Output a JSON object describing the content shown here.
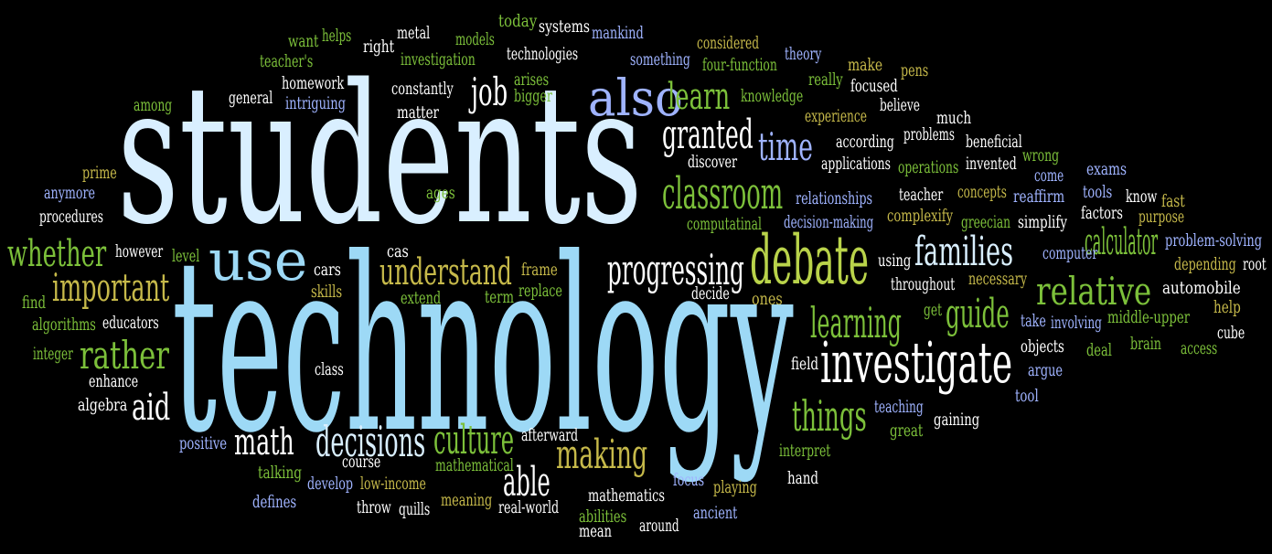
{
  "background": "#000000",
  "palette": {
    "white": "#ffffff",
    "pale_blue": "#d9efff",
    "sky_blue": "#9dd9f6",
    "periwinkle": "#9fb3ff",
    "green": "#7cc03a",
    "olive": "#c6b94a",
    "yellow_green": "#b9d34a"
  },
  "words": [
    {
      "text": "students",
      "color": "pale_blue"
    },
    {
      "text": "technology",
      "color": "sky_blue"
    },
    {
      "text": "use",
      "color": "sky_blue"
    },
    {
      "text": "also",
      "color": "periwinkle"
    },
    {
      "text": "debate",
      "color": "yellow_green"
    },
    {
      "text": "investigate",
      "color": "white"
    },
    {
      "text": "families",
      "color": "pale_blue"
    },
    {
      "text": "understand",
      "color": "olive"
    },
    {
      "text": "progressing",
      "color": "white"
    },
    {
      "text": "classroom",
      "color": "green"
    },
    {
      "text": "granted",
      "color": "white"
    },
    {
      "text": "learn",
      "color": "green"
    },
    {
      "text": "time",
      "color": "periwinkle"
    },
    {
      "text": "job",
      "color": "white"
    },
    {
      "text": "whether",
      "color": "green"
    },
    {
      "text": "important",
      "color": "olive"
    },
    {
      "text": "relative",
      "color": "green"
    },
    {
      "text": "calculator",
      "color": "green"
    },
    {
      "text": "rather",
      "color": "green"
    },
    {
      "text": "learning",
      "color": "green"
    },
    {
      "text": "guide",
      "color": "green"
    },
    {
      "text": "things",
      "color": "green"
    },
    {
      "text": "culture",
      "color": "green"
    },
    {
      "text": "making",
      "color": "olive"
    },
    {
      "text": "decisions",
      "color": "pale_blue"
    },
    {
      "text": "math",
      "color": "white"
    },
    {
      "text": "able",
      "color": "white"
    },
    {
      "text": "aid",
      "color": "white"
    },
    {
      "text": "want",
      "color": "green"
    },
    {
      "text": "helps",
      "color": "green"
    },
    {
      "text": "right",
      "color": "white"
    },
    {
      "text": "metal",
      "color": "white"
    },
    {
      "text": "models",
      "color": "green"
    },
    {
      "text": "today",
      "color": "green"
    },
    {
      "text": "systems",
      "color": "white"
    },
    {
      "text": "mankind",
      "color": "periwinkle"
    },
    {
      "text": "considered",
      "color": "olive"
    },
    {
      "text": "theory",
      "color": "periwinkle"
    },
    {
      "text": "teacher's",
      "color": "green"
    },
    {
      "text": "investigation",
      "color": "green"
    },
    {
      "text": "technologies",
      "color": "white"
    },
    {
      "text": "something",
      "color": "periwinkle"
    },
    {
      "text": "four-function",
      "color": "green"
    },
    {
      "text": "make",
      "color": "olive"
    },
    {
      "text": "pens",
      "color": "olive"
    },
    {
      "text": "homework",
      "color": "white"
    },
    {
      "text": "arises",
      "color": "green"
    },
    {
      "text": "really",
      "color": "green"
    },
    {
      "text": "focused",
      "color": "white"
    },
    {
      "text": "among",
      "color": "green"
    },
    {
      "text": "general",
      "color": "white"
    },
    {
      "text": "intriguing",
      "color": "periwinkle"
    },
    {
      "text": "constantly",
      "color": "white"
    },
    {
      "text": "bigger",
      "color": "green"
    },
    {
      "text": "knowledge",
      "color": "green"
    },
    {
      "text": "believe",
      "color": "white"
    },
    {
      "text": "matter",
      "color": "white"
    },
    {
      "text": "experience",
      "color": "olive"
    },
    {
      "text": "much",
      "color": "white"
    },
    {
      "text": "according",
      "color": "white"
    },
    {
      "text": "problems",
      "color": "white"
    },
    {
      "text": "beneficial",
      "color": "white"
    },
    {
      "text": "wrong",
      "color": "green"
    },
    {
      "text": "discover",
      "color": "white"
    },
    {
      "text": "applications",
      "color": "white"
    },
    {
      "text": "operations",
      "color": "green"
    },
    {
      "text": "invented",
      "color": "white"
    },
    {
      "text": "come",
      "color": "periwinkle"
    },
    {
      "text": "exams",
      "color": "periwinkle"
    },
    {
      "text": "prime",
      "color": "olive"
    },
    {
      "text": "anymore",
      "color": "periwinkle"
    },
    {
      "text": "ages",
      "color": "green"
    },
    {
      "text": "relationships",
      "color": "periwinkle"
    },
    {
      "text": "teacher",
      "color": "white"
    },
    {
      "text": "concepts",
      "color": "olive"
    },
    {
      "text": "reaffirm",
      "color": "periwinkle"
    },
    {
      "text": "tools",
      "color": "periwinkle"
    },
    {
      "text": "know",
      "color": "white"
    },
    {
      "text": "fast",
      "color": "olive"
    },
    {
      "text": "procedures",
      "color": "white"
    },
    {
      "text": "computatinal",
      "color": "green"
    },
    {
      "text": "decision-making",
      "color": "periwinkle"
    },
    {
      "text": "complexify",
      "color": "olive"
    },
    {
      "text": "greecian",
      "color": "green"
    },
    {
      "text": "simplify",
      "color": "white"
    },
    {
      "text": "factors",
      "color": "white"
    },
    {
      "text": "purpose",
      "color": "olive"
    },
    {
      "text": "however",
      "color": "white"
    },
    {
      "text": "level",
      "color": "green"
    },
    {
      "text": "cas",
      "color": "white"
    },
    {
      "text": "using",
      "color": "white"
    },
    {
      "text": "computer",
      "color": "periwinkle"
    },
    {
      "text": "problem-solving",
      "color": "periwinkle"
    },
    {
      "text": "depending",
      "color": "olive"
    },
    {
      "text": "root",
      "color": "white"
    },
    {
      "text": "cars",
      "color": "white"
    },
    {
      "text": "skills",
      "color": "olive"
    },
    {
      "text": "frame",
      "color": "olive"
    },
    {
      "text": "replace",
      "color": "green"
    },
    {
      "text": "throughout",
      "color": "white"
    },
    {
      "text": "necessary",
      "color": "olive"
    },
    {
      "text": "automobile",
      "color": "white"
    },
    {
      "text": "find",
      "color": "green"
    },
    {
      "text": "extend",
      "color": "green"
    },
    {
      "text": "term",
      "color": "green"
    },
    {
      "text": "decide",
      "color": "white"
    },
    {
      "text": "ones",
      "color": "olive"
    },
    {
      "text": "get",
      "color": "green"
    },
    {
      "text": "help",
      "color": "olive"
    },
    {
      "text": "algorithms",
      "color": "green"
    },
    {
      "text": "educators",
      "color": "white"
    },
    {
      "text": "take",
      "color": "periwinkle"
    },
    {
      "text": "involving",
      "color": "periwinkle"
    },
    {
      "text": "middle-upper",
      "color": "green"
    },
    {
      "text": "cube",
      "color": "white"
    },
    {
      "text": "integer",
      "color": "green"
    },
    {
      "text": "objects",
      "color": "white"
    },
    {
      "text": "deal",
      "color": "green"
    },
    {
      "text": "brain",
      "color": "green"
    },
    {
      "text": "access",
      "color": "green"
    },
    {
      "text": "enhance",
      "color": "white"
    },
    {
      "text": "class",
      "color": "white"
    },
    {
      "text": "field",
      "color": "white"
    },
    {
      "text": "argue",
      "color": "periwinkle"
    },
    {
      "text": "algebra",
      "color": "white"
    },
    {
      "text": "tool",
      "color": "periwinkle"
    },
    {
      "text": "teaching",
      "color": "periwinkle"
    },
    {
      "text": "gaining",
      "color": "white"
    },
    {
      "text": "great",
      "color": "green"
    },
    {
      "text": "positive",
      "color": "periwinkle"
    },
    {
      "text": "afterward",
      "color": "white"
    },
    {
      "text": "interpret",
      "color": "green"
    },
    {
      "text": "course",
      "color": "white"
    },
    {
      "text": "mathematical",
      "color": "green"
    },
    {
      "text": "talking",
      "color": "green"
    },
    {
      "text": "develop",
      "color": "periwinkle"
    },
    {
      "text": "low-income",
      "color": "olive"
    },
    {
      "text": "focus",
      "color": "periwinkle"
    },
    {
      "text": "playing",
      "color": "olive"
    },
    {
      "text": "hand",
      "color": "white"
    },
    {
      "text": "mathematics",
      "color": "white"
    },
    {
      "text": "defines",
      "color": "periwinkle"
    },
    {
      "text": "throw",
      "color": "white"
    },
    {
      "text": "quills",
      "color": "white"
    },
    {
      "text": "meaning",
      "color": "olive"
    },
    {
      "text": "real-world",
      "color": "white"
    },
    {
      "text": "abilities",
      "color": "green"
    },
    {
      "text": "ancient",
      "color": "periwinkle"
    },
    {
      "text": "around",
      "color": "white"
    },
    {
      "text": "mean",
      "color": "white"
    }
  ]
}
